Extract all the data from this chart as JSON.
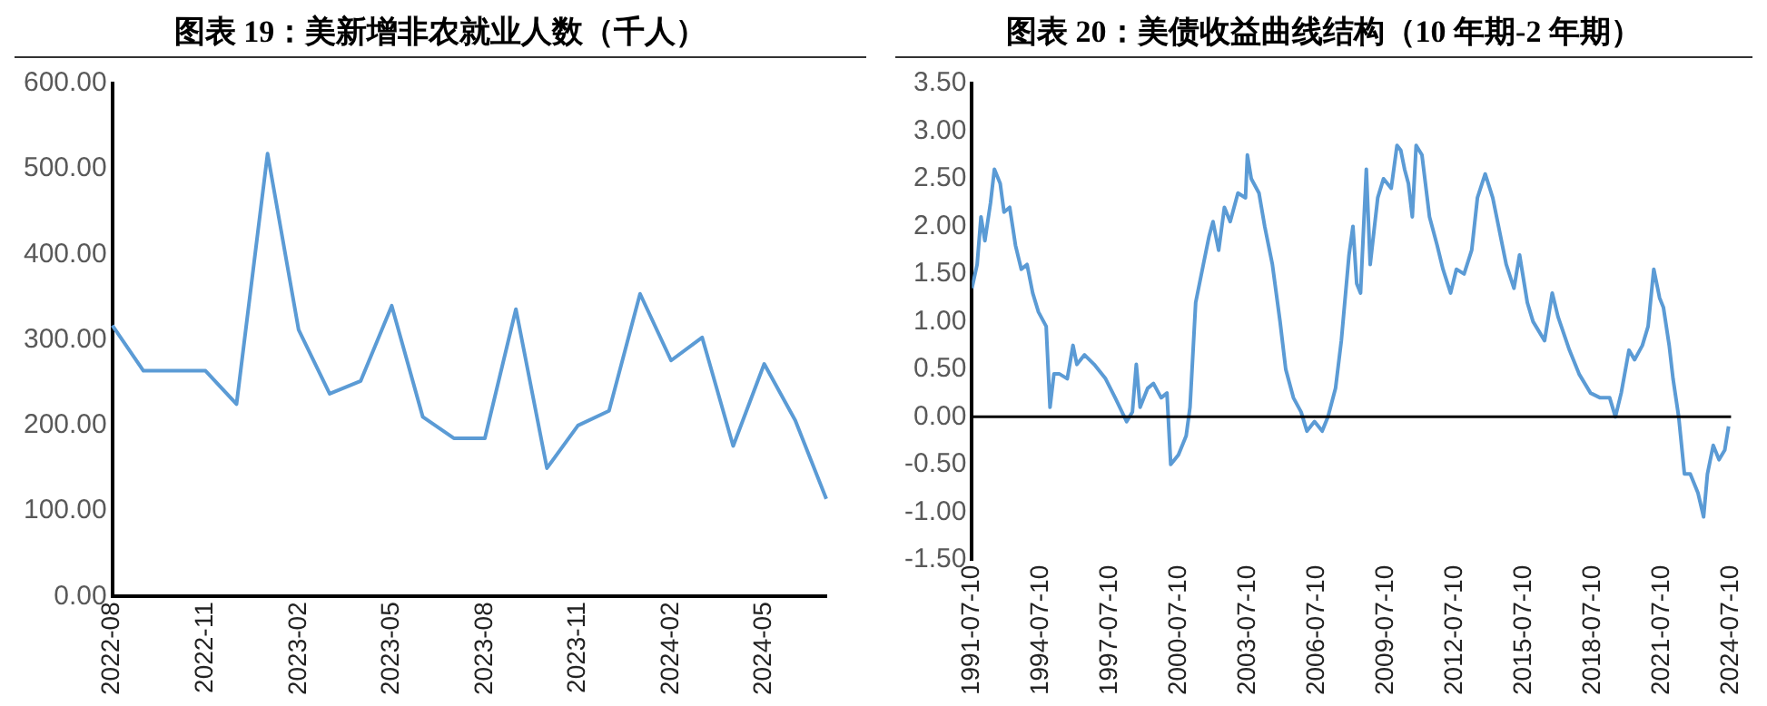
{
  "chart_data": [
    {
      "type": "line",
      "title": "图表 19：美新增非农就业人数（千人）",
      "categories": [
        "2022-08",
        null,
        null,
        "2022-11",
        null,
        null,
        "2023-02",
        null,
        null,
        "2023-05",
        null,
        null,
        "2023-08",
        null,
        null,
        "2023-11",
        null,
        null,
        "2024-02",
        null,
        null,
        "2024-05",
        null,
        null
      ],
      "series": [
        {
          "color": "#5b9bd5",
          "values": [
            317,
            264,
            264,
            264,
            225,
            518,
            312,
            237,
            252,
            340,
            210,
            185,
            185,
            336,
            150,
            200,
            217,
            354,
            276,
            303,
            176,
            272,
            206,
            114
          ]
        }
      ],
      "ylim": [
        0,
        600
      ],
      "yticks": [
        {
          "value": 0,
          "label": "0.00"
        },
        {
          "value": 100,
          "label": "100.00"
        },
        {
          "value": 200,
          "label": "200.00"
        },
        {
          "value": 300,
          "label": "300.00"
        },
        {
          "value": 400,
          "label": "400.00"
        },
        {
          "value": 500,
          "label": "500.00"
        },
        {
          "value": 600,
          "label": "600.00"
        }
      ],
      "legend": false
    },
    {
      "type": "line",
      "title": "图表 20：美债收益曲线结构（10 年期-2 年期）",
      "x": [
        "1991-07-10",
        "1991-10",
        "1991-12",
        "1992-02",
        "1992-05",
        "1992-07",
        "1992-10",
        "1992-12",
        "1993-03",
        "1993-06",
        "1993-09",
        "1993-12",
        "1994-03",
        "1994-06",
        "1994-10",
        "1994-12",
        "1995-02",
        "1995-05",
        "1995-09",
        "1995-12",
        "1996-02",
        "1996-06",
        "1996-11",
        "1997-05",
        "1997-10",
        "1998-04",
        "1998-07",
        "1998-09",
        "1998-11",
        "1999-03",
        "1999-06",
        "1999-10",
        "2000-01",
        "2000-03",
        "2000-07",
        "2000-11",
        "2001-01",
        "2001-04",
        "2001-08",
        "2001-11",
        "2002-01",
        "2002-04",
        "2002-07",
        "2002-10",
        "2003-02",
        "2003-06",
        "2003-07",
        "2003-09",
        "2004-01",
        "2004-04",
        "2004-08",
        "2004-12",
        "2005-03",
        "2005-07",
        "2005-11",
        "2006-02",
        "2006-06",
        "2006-10",
        "2007-01",
        "2007-05",
        "2007-08",
        "2007-12",
        "2008-02",
        "2008-04",
        "2008-06",
        "2008-09",
        "2008-11",
        "2009-03",
        "2009-06",
        "2009-10",
        "2010-01",
        "2010-03",
        "2010-05",
        "2010-07",
        "2010-09",
        "2010-11",
        "2011-02",
        "2011-06",
        "2011-10",
        "2012-01",
        "2012-05",
        "2012-08",
        "2012-12",
        "2013-04",
        "2013-07",
        "2013-11",
        "2014-03",
        "2014-06",
        "2014-10",
        "2015-02",
        "2015-05",
        "2015-09",
        "2015-12",
        "2016-06",
        "2016-10",
        "2017-01",
        "2017-07",
        "2017-12",
        "2018-06",
        "2018-11",
        "2019-04",
        "2019-07",
        "2019-10",
        "2020-02",
        "2020-05",
        "2020-09",
        "2020-12",
        "2021-03",
        "2021-06",
        "2021-08",
        "2021-11",
        "2022-01",
        "2022-04",
        "2022-07",
        "2022-10",
        "2023-02",
        "2023-05",
        "2023-07",
        "2023-10",
        "2024-01",
        "2024-04",
        "2024-06"
      ],
      "series": [
        {
          "color": "#5b9bd5",
          "values": [
            1.35,
            1.6,
            2.1,
            1.85,
            2.25,
            2.6,
            2.45,
            2.15,
            2.2,
            1.8,
            1.55,
            1.6,
            1.3,
            1.1,
            0.95,
            0.1,
            0.45,
            0.45,
            0.4,
            0.75,
            0.55,
            0.65,
            0.55,
            0.4,
            0.2,
            -0.05,
            0.05,
            0.55,
            0.1,
            0.3,
            0.35,
            0.2,
            0.25,
            -0.5,
            -0.4,
            -0.2,
            0.1,
            1.2,
            1.6,
            1.9,
            2.05,
            1.75,
            2.2,
            2.05,
            2.35,
            2.3,
            2.75,
            2.5,
            2.35,
            2.0,
            1.6,
            1.0,
            0.5,
            0.2,
            0.05,
            -0.15,
            -0.05,
            -0.15,
            0.0,
            0.3,
            0.8,
            1.7,
            2.0,
            1.4,
            1.3,
            2.6,
            1.6,
            2.3,
            2.5,
            2.4,
            2.85,
            2.8,
            2.6,
            2.45,
            2.1,
            2.85,
            2.75,
            2.1,
            1.8,
            1.55,
            1.3,
            1.55,
            1.5,
            1.75,
            2.3,
            2.55,
            2.3,
            2.0,
            1.6,
            1.35,
            1.7,
            1.2,
            1.0,
            0.8,
            1.3,
            1.05,
            0.7,
            0.45,
            0.25,
            0.2,
            0.2,
            0.0,
            0.25,
            0.7,
            0.6,
            0.75,
            0.95,
            1.55,
            1.25,
            1.15,
            0.75,
            0.4,
            0.0,
            -0.6,
            -0.6,
            -0.8,
            -1.05,
            -0.6,
            -0.3,
            -0.45,
            -0.35,
            -0.1
          ]
        }
      ],
      "xlim": [
        "1991-07-10",
        "2024-07-10"
      ],
      "xticks": [
        "1991-07-10",
        "1994-07-10",
        "1997-07-10",
        "2000-07-10",
        "2003-07-10",
        "2006-07-10",
        "2009-07-10",
        "2012-07-10",
        "2015-07-10",
        "2018-07-10",
        "2021-07-10",
        "2024-07-10"
      ],
      "ylim": [
        -1.5,
        3.5
      ],
      "yticks": [
        {
          "value": -1.5,
          "label": "-1.50"
        },
        {
          "value": -1,
          "label": "-1.00"
        },
        {
          "value": -0.5,
          "label": "-0.50"
        },
        {
          "value": 0,
          "label": "0.00"
        },
        {
          "value": 0.5,
          "label": "0.50"
        },
        {
          "value": 1,
          "label": "1.00"
        },
        {
          "value": 1.5,
          "label": "1.50"
        },
        {
          "value": 2,
          "label": "2.00"
        },
        {
          "value": 2.5,
          "label": "2.50"
        },
        {
          "value": 3,
          "label": "3.00"
        },
        {
          "value": 3.5,
          "label": "3.50"
        }
      ],
      "legend": false
    }
  ]
}
